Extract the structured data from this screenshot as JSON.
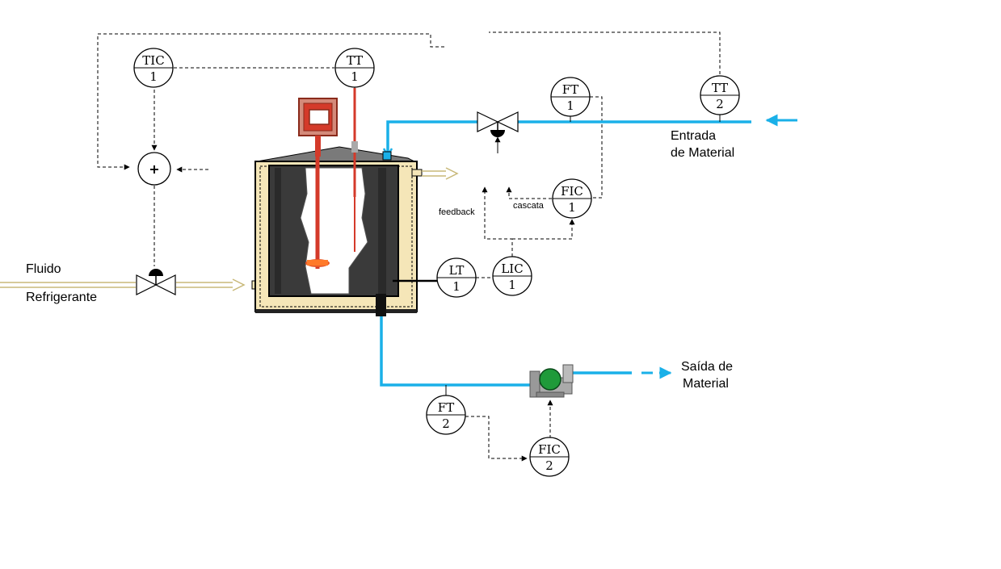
{
  "instruments": [
    {
      "id": "tic1",
      "tag": "TIC",
      "num": "1"
    },
    {
      "id": "tt1",
      "tag": "TT",
      "num": "1"
    },
    {
      "id": "ft1",
      "tag": "FT",
      "num": "1"
    },
    {
      "id": "tt2",
      "tag": "TT",
      "num": "2"
    },
    {
      "id": "fic1",
      "tag": "FIC",
      "num": "1"
    },
    {
      "id": "lt1",
      "tag": "LT",
      "num": "1"
    },
    {
      "id": "lic1",
      "tag": "LIC",
      "num": "1"
    },
    {
      "id": "ft2",
      "tag": "FT",
      "num": "2"
    },
    {
      "id": "fic2",
      "tag": "FIC",
      "num": "2"
    }
  ],
  "summer": {
    "symbol": "+"
  },
  "labels": {
    "coolant_line1": "Fluido",
    "coolant_line2": "Refrigerante",
    "inlet_line1": "Entrada",
    "inlet_line2": "de Material",
    "outlet_line1": "Saída de",
    "outlet_line2": "Material",
    "feedback": "feedback",
    "cascade": "cascata"
  },
  "colors": {
    "material_pipe": "#1ab0e8",
    "jacket": "#f5e6b8",
    "tank_wall": "#3a3a3a",
    "agitator": "#d43a2a",
    "pump_body": "#1f9a3a"
  }
}
